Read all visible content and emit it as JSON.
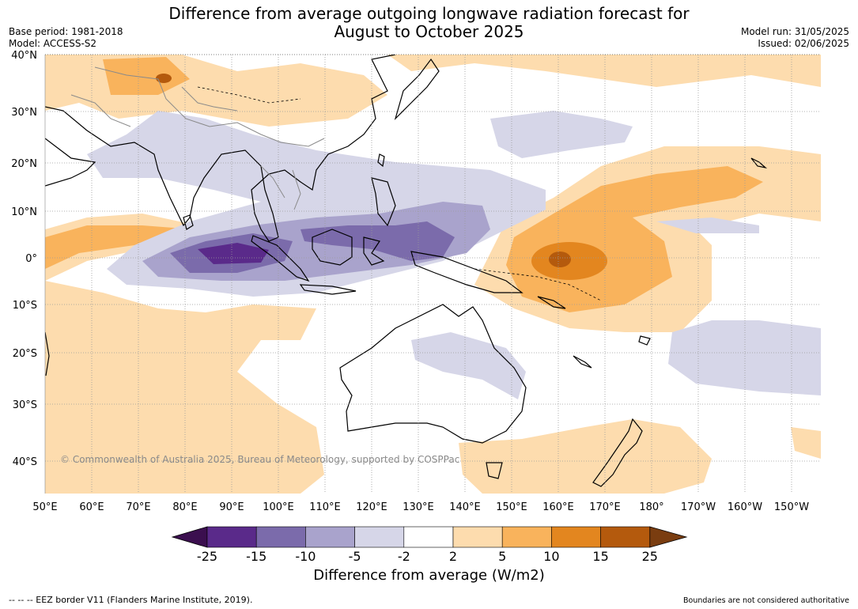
{
  "title": {
    "line1": "Difference from average outgoing longwave radiation forecast for",
    "line2": "August to October 2025"
  },
  "meta_left": {
    "base_period": "Base period: 1981-2018",
    "model": "Model: ACCESS-S2"
  },
  "meta_right": {
    "model_run": "Model run: 31/05/2025",
    "issued": "Issued: 02/06/2025"
  },
  "map": {
    "lat_labels": [
      "40°N",
      "30°N",
      "20°N",
      "10°N",
      "0°",
      "10°S",
      "20°S",
      "30°S",
      "40°S"
    ],
    "lon_labels": [
      "50°E",
      "60°E",
      "70°E",
      "80°E",
      "90°E",
      "100°E",
      "110°E",
      "120°E",
      "130°E",
      "140°E",
      "150°E",
      "160°E",
      "170°E",
      "180°",
      "170°W",
      "160°W",
      "150°W"
    ],
    "copyright": "© Commonwealth of Australia 2025, Bureau of Meteorology, supported by COSPPac"
  },
  "colorbar": {
    "tick_labels": [
      "-25",
      "-15",
      "-10",
      "-5",
      "-2",
      "2",
      "5",
      "10",
      "15",
      "25"
    ],
    "colors": [
      "#3b0f4f",
      "#5a2a8a",
      "#7b6bab",
      "#a9a3cc",
      "#d6d6e8",
      "#ffffff",
      "#fddcae",
      "#f9b35c",
      "#e3861f",
      "#b45a0d",
      "#7a3d10"
    ],
    "label": "Difference from average (W/m2)"
  },
  "footer": {
    "left": "--  --  -- EEZ border V11 (Flanders Marine Institute, 2019).",
    "right": "Boundaries are not considered authoritative"
  }
}
